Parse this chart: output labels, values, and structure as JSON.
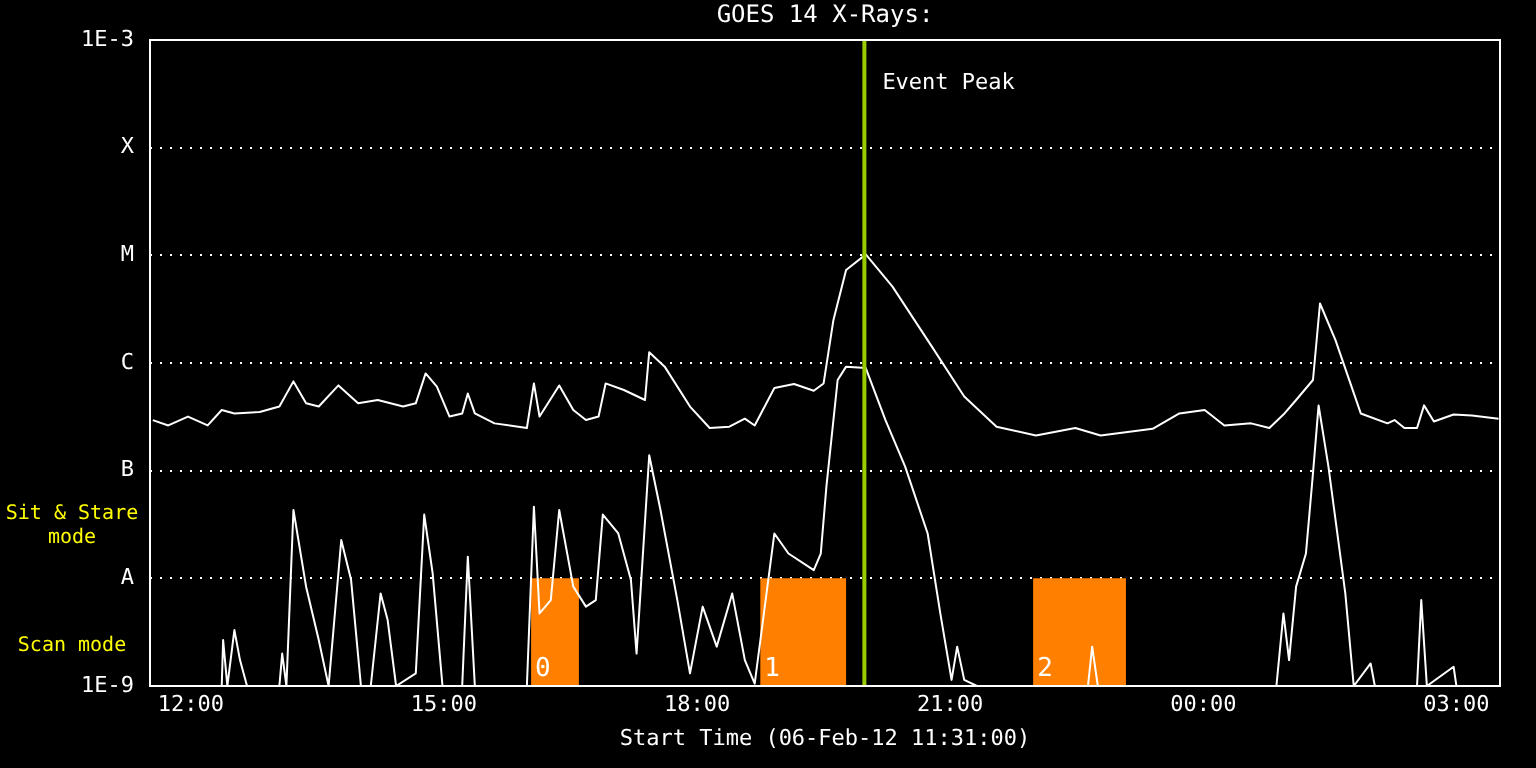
{
  "chart_data": {
    "type": "line",
    "title": "GOES 14 X-Rays:",
    "xlabel": "Start Time (06-Feb-12 11:31:00)",
    "annotations": [
      "Sit & Stare mode",
      "Scan mode"
    ],
    "xlim": [
      "--02-06T11:31",
      "--02-07T03:31"
    ],
    "xticks": [
      {
        "value": "--02-06T12:00",
        "label": "12:00"
      },
      {
        "value": "--02-06T15:00",
        "label": "15:00"
      },
      {
        "value": "--02-06T18:00",
        "label": "18:00"
      },
      {
        "value": "--02-06T21:00",
        "label": "21:00"
      },
      {
        "value": "--02-07T00:00",
        "label": "00:00"
      },
      {
        "value": "--02-07T03:00",
        "label": "03:00"
      }
    ],
    "ylim": [
      1e-09,
      0.001
    ],
    "yticks": [
      {
        "value": 1e-09,
        "label": "1E-9"
      },
      {
        "value": 1e-08,
        "label": "A"
      },
      {
        "value": 1e-07,
        "label": "B"
      },
      {
        "value": 1e-06,
        "label": "C"
      },
      {
        "value": 1e-05,
        "label": "M"
      },
      {
        "value": 0.0001,
        "label": "X"
      },
      {
        "value": 0.001,
        "label": "1E-3"
      }
    ],
    "log": true,
    "grid": "y",
    "legend": false,
    "marker": "none",
    "series": [
      {
        "color": "#ffffff",
        "x": [
          "--02-06T11:33",
          "--02-06T11:44",
          "--02-06T11:58",
          "--02-06T12:12",
          "--02-06T12:22",
          "--02-06T12:31",
          "--02-06T12:49",
          "--02-06T13:03",
          "--02-06T13:13",
          "--02-06T13:22",
          "--02-06T13:31",
          "--02-06T13:45",
          "--02-06T13:59",
          "--02-06T14:13",
          "--02-06T14:31",
          "--02-06T14:40",
          "--02-06T14:47",
          "--02-06T14:55",
          "--02-06T15:04",
          "--02-06T15:13",
          "--02-06T15:17",
          "--02-06T15:22",
          "--02-06T15:36",
          "--02-06T15:59",
          "--02-06T16:04",
          "--02-06T16:08",
          "--02-06T16:22",
          "--02-06T16:32",
          "--02-06T16:41",
          "--02-06T16:50",
          "--02-06T16:55",
          "--02-06T17:08",
          "--02-06T17:23",
          "--02-06T17:26",
          "--02-06T17:37",
          "--02-06T17:55",
          "--02-06T18:09",
          "--02-06T18:23",
          "--02-06T18:34",
          "--02-06T18:41",
          "--02-06T18:55",
          "--02-06T19:09",
          "--02-06T19:23",
          "--02-06T19:30",
          "--02-06T19:37",
          "--02-06T19:46",
          "--02-06T20:00",
          "--02-06T20:19",
          "--02-06T20:47",
          "--02-06T21:10",
          "--02-06T21:33",
          "--02-06T22:01",
          "--02-06T22:29",
          "--02-06T22:47",
          "--02-06T23:24",
          "--02-06T23:43",
          "--02-07T00:01",
          "--02-07T00:15",
          "--02-07T00:34",
          "--02-07T00:47",
          "--02-07T00:57",
          "--02-07T01:06",
          "--02-07T01:18",
          "--02-07T01:23",
          "--02-07T01:34",
          "--02-07T01:52",
          "--02-07T02:11",
          "--02-07T02:16",
          "--02-07T02:23",
          "--02-07T02:32",
          "--02-07T02:37",
          "--02-07T02:44",
          "--02-07T02:58",
          "--02-07T03:11",
          "--02-07T03:30"
        ],
        "values": [
          2.95e-07,
          2.63e-07,
          3.18e-07,
          2.63e-07,
          3.66e-07,
          3.4e-07,
          3.51e-07,
          3.94e-07,
          6.75e-07,
          4.22e-07,
          3.94e-07,
          6.19e-07,
          4.22e-07,
          4.53e-07,
          3.94e-07,
          4.22e-07,
          8e-07,
          6.04e-07,
          3.18e-07,
          3.4e-07,
          5.21e-07,
          3.4e-07,
          2.75e-07,
          2.49e-07,
          6.46e-07,
          3.18e-07,
          6.19e-07,
          3.66e-07,
          2.95e-07,
          3.18e-07,
          6.46e-07,
          5.61e-07,
          4.53e-07,
          1.26e-06,
          9.25e-07,
          3.94e-07,
          2.49e-07,
          2.56e-07,
          3.04e-07,
          2.63e-07,
          5.86e-07,
          6.38e-07,
          5.53e-07,
          6.46e-07,
          2.51e-06,
          7.31e-06,
          1.02e-05,
          5.12e-06,
          1.42e-06,
          4.88e-07,
          2.56e-07,
          2.12e-07,
          2.49e-07,
          2.12e-07,
          2.45e-07,
          3.4e-07,
          3.66e-07,
          2.63e-07,
          2.75e-07,
          2.49e-07,
          3.32e-07,
          4.53e-07,
          6.95e-07,
          3.57e-06,
          1.63e-06,
          3.4e-07,
          2.75e-07,
          2.95e-07,
          2.49e-07,
          2.49e-07,
          4.04e-07,
          2.86e-07,
          3.32e-07,
          3.26e-07,
          3.04e-07
        ]
      },
      {
        "color": "#ffffff",
        "x": [
          "--02-06T11:32",
          "--02-06T12:22",
          "--02-06T12:23",
          "--02-06T12:26",
          "--02-06T12:31",
          "--02-06T12:35",
          "--02-06T12:40",
          "--02-06T13:03",
          "--02-06T13:05",
          "--02-06T13:08",
          "--02-06T13:13",
          "--02-06T13:22",
          "--02-06T13:31",
          "--02-06T13:38",
          "--02-06T13:47",
          "--02-06T13:54",
          "--02-06T14:01",
          "--02-06T14:08",
          "--02-06T14:15",
          "--02-06T14:20",
          "--02-06T14:26",
          "--02-06T14:40",
          "--02-06T14:46",
          "--02-06T14:52",
          "--02-06T14:59",
          "--02-06T15:13",
          "--02-06T15:17",
          "--02-06T15:22",
          "--02-06T15:59",
          "--02-06T16:04",
          "--02-06T16:08",
          "--02-06T16:16",
          "--02-06T16:22",
          "--02-06T16:32",
          "--02-06T16:41",
          "--02-06T16:48",
          "--02-06T16:53",
          "--02-06T17:04",
          "--02-06T17:13",
          "--02-06T17:17",
          "--02-06T17:26",
          "--02-06T17:34",
          "--02-06T17:46",
          "--02-06T17:55",
          "--02-06T18:04",
          "--02-06T18:14",
          "--02-06T18:25",
          "--02-06T18:34",
          "--02-06T18:41",
          "--02-06T18:55",
          "--02-06T19:05",
          "--02-06T19:23",
          "--02-06T19:28",
          "--02-06T19:32",
          "--02-06T19:40",
          "--02-06T19:46",
          "--02-06T20:00",
          "--02-06T20:14",
          "--02-06T20:28",
          "--02-06T20:44",
          "--02-06T20:53",
          "--02-06T21:01",
          "--02-06T21:05",
          "--02-06T21:10",
          "--02-06T21:19",
          "--02-06T22:38",
          "--02-06T22:41",
          "--02-06T22:45",
          "--02-07T00:52",
          "--02-07T00:57",
          "--02-07T01:01",
          "--02-07T01:06",
          "--02-07T01:13",
          "--02-07T01:18",
          "--02-07T01:22",
          "--02-07T01:29",
          "--02-07T01:41",
          "--02-07T01:47",
          "--02-07T01:59",
          "--02-07T02:02",
          "--02-07T02:32",
          "--02-07T02:35",
          "--02-07T02:39",
          "--02-07T02:58",
          "--02-07T03:00",
          "--02-07T03:30"
        ],
        "values": [
          1e-09,
          1e-09,
          2.67e-09,
          1e-09,
          3.31e-09,
          1.74e-09,
          1e-09,
          1e-09,
          2e-09,
          1e-09,
          4.31e-08,
          8.37e-09,
          2.67e-09,
          1e-09,
          2.27e-08,
          9.64e-09,
          1e-09,
          1e-09,
          7.24e-09,
          4.1e-09,
          1e-09,
          1.31e-09,
          3.91e-08,
          1.11e-08,
          1e-09,
          1e-09,
          1.59e-08,
          1e-09,
          1e-09,
          4.63e-08,
          4.72e-09,
          6.28e-09,
          4.31e-08,
          8.37e-09,
          5.46e-09,
          6.28e-09,
          3.91e-08,
          2.61e-08,
          9.64e-09,
          2e-09,
          1.39e-07,
          4.31e-08,
          6.28e-09,
          1.31e-09,
          5.46e-09,
          2.32e-09,
          7.24e-09,
          1.74e-09,
          1.05e-09,
          2.61e-08,
          1.7e-08,
          1.19e-08,
          1.7e-08,
          7.11e-08,
          6.95e-07,
          9.25e-07,
          8.97e-07,
          2.95e-07,
          1.09e-07,
          2.61e-08,
          4.72e-09,
          1.14e-09,
          2.32e-09,
          1.14e-09,
          1e-09,
          1e-09,
          2.32e-09,
          1e-09,
          1e-09,
          4.72e-09,
          1.74e-09,
          8.37e-09,
          1.7e-08,
          9.42e-08,
          4.04e-07,
          1.09e-07,
          7.24e-09,
          1e-09,
          1.62e-09,
          1e-09,
          1e-09,
          6.28e-09,
          1e-09,
          1.51e-09,
          1e-09,
          1e-09
        ]
      }
    ],
    "ref_lines": [
      {
        "axis": "x",
        "value": "--02-06T19:59",
        "label": "Event Peak",
        "color": "#99cc00"
      }
    ],
    "bands": [
      {
        "axis": "x",
        "from": "--02-06T16:02",
        "to": "--02-06T16:36",
        "label": "0",
        "color": "#ff8000"
      },
      {
        "axis": "x",
        "from": "--02-06T18:45",
        "to": "--02-06T19:46",
        "label": "1",
        "color": "#ff8000"
      },
      {
        "axis": "x",
        "from": "--02-06T21:59",
        "to": "--02-06T23:05",
        "label": "2",
        "color": "#ff8000"
      }
    ]
  }
}
